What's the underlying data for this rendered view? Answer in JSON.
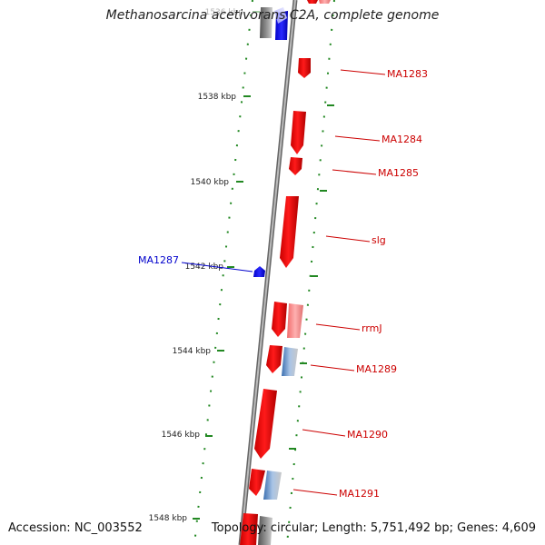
{
  "title": "Methanosarcina acetivorans C2A, complete genome",
  "footer": {
    "accession": "Accession: NC_003552",
    "summary": "Topology: circular; Length: 5,751,492 bp; Genes: 4,609"
  },
  "ticks": [
    {
      "label": "1536 kbp",
      "faded": true
    },
    {
      "label": "1538 kbp"
    },
    {
      "label": "1540 kbp"
    },
    {
      "label": "1542 kbp"
    },
    {
      "label": "1544 kbp"
    },
    {
      "label": "1546 kbp"
    },
    {
      "label": "1548 kbp"
    }
  ],
  "gene_labels": [
    {
      "text": "MA1283",
      "color": "#cc0000"
    },
    {
      "text": "MA1284",
      "color": "#cc0000"
    },
    {
      "text": "MA1285",
      "color": "#cc0000"
    },
    {
      "text": "slg",
      "color": "#cc0000"
    },
    {
      "text": "MA1287",
      "color": "#0000cc"
    },
    {
      "text": "rrmJ",
      "color": "#cc0000"
    },
    {
      "text": "MA1289",
      "color": "#cc0000"
    },
    {
      "text": "MA1290",
      "color": "#cc0000"
    },
    {
      "text": "MA1291",
      "color": "#cc0000"
    }
  ],
  "colors": {
    "forward_gene": "#ee0000",
    "reverse_gene": "#0000ee",
    "backbone": "#888888",
    "tick_marks": "#228822"
  }
}
